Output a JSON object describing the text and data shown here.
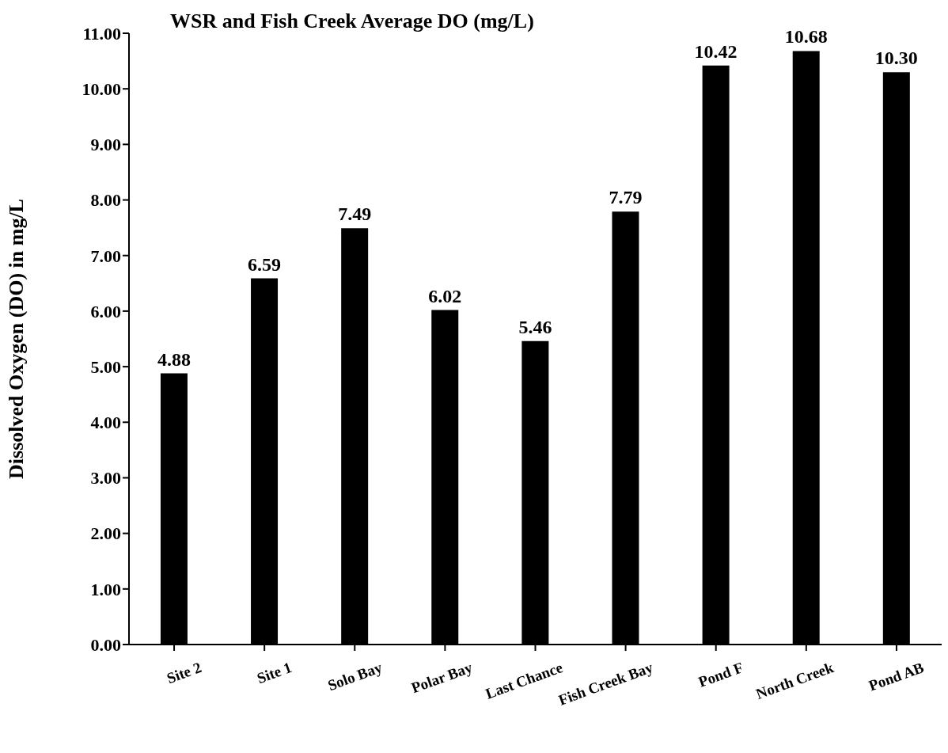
{
  "chart_data": {
    "type": "bar",
    "title": "WSR and Fish Creek Average DO (mg/L)",
    "ylabel": "Dissolved Oxygen (DO) in mg/L",
    "categories": [
      "Site 2",
      "Site 1",
      "Solo Bay",
      "Polar Bay",
      "Last Chance",
      "Fish Creek Bay",
      "Pond F",
      "North Creek",
      "Pond AB"
    ],
    "values": [
      4.88,
      6.59,
      7.49,
      6.02,
      5.46,
      7.79,
      10.42,
      10.68,
      10.3
    ],
    "value_labels": [
      "4.88",
      "6.59",
      "7.49",
      "6.02",
      "5.46",
      "7.79",
      "10.42",
      "10.68",
      "10.30"
    ],
    "color": "#000000",
    "ylim": [
      0,
      11
    ],
    "yticks": [
      {
        "value": 0,
        "label": "0.00"
      },
      {
        "value": 1,
        "label": "1.00"
      },
      {
        "value": 2,
        "label": "2.00"
      },
      {
        "value": 3,
        "label": "3.00"
      },
      {
        "value": 4,
        "label": "4.00"
      },
      {
        "value": 5,
        "label": "5.00"
      },
      {
        "value": 6,
        "label": "6.00"
      },
      {
        "value": 7,
        "label": "7.00"
      },
      {
        "value": 8,
        "label": "8.00"
      },
      {
        "value": 9,
        "label": "9.00"
      },
      {
        "value": 10,
        "label": "10.00"
      },
      {
        "value": 11,
        "label": "11.00"
      }
    ],
    "grid": false,
    "legend": false
  }
}
